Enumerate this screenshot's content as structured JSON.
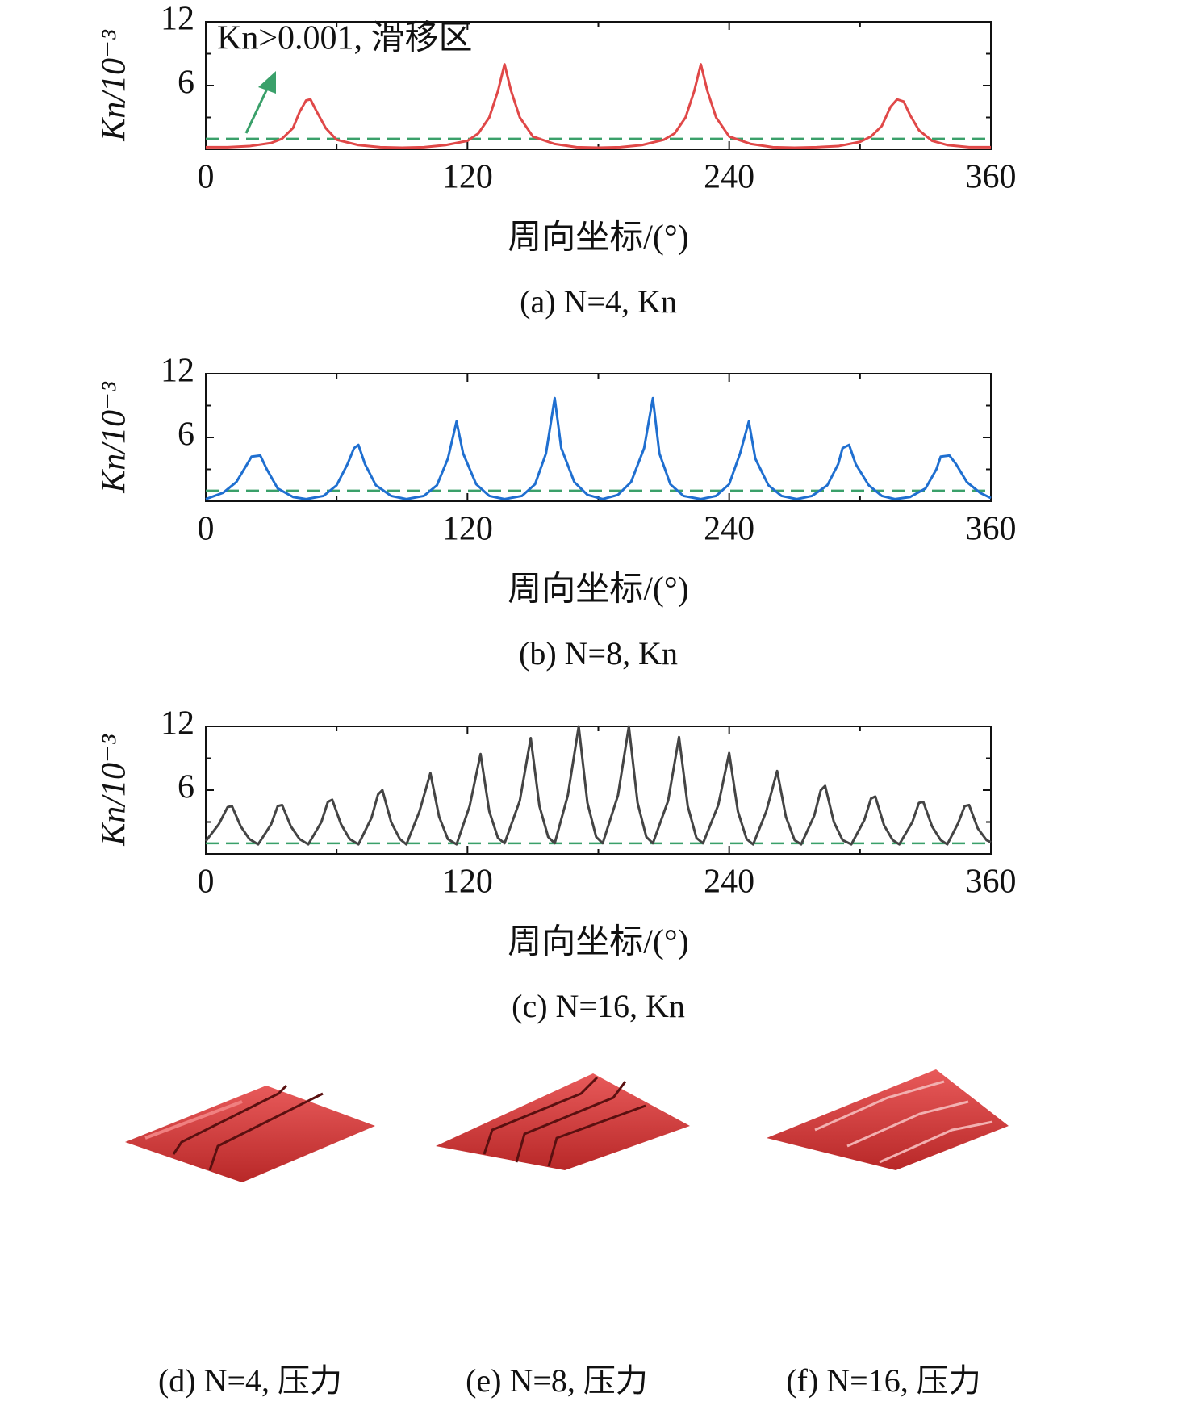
{
  "chart_data": [
    {
      "type": "line",
      "caption": "(a) N=4, Kn",
      "xlabel": "周向坐标/(°)",
      "ylabel": "Kn/10⁻³",
      "annotation": "Kn>0.001, 滑移区",
      "xlim": [
        0,
        360
      ],
      "xticks": [
        0,
        120,
        240,
        360
      ],
      "xminor": [
        60,
        180,
        300
      ],
      "ylim": [
        0,
        12
      ],
      "yticks": [
        6,
        12
      ],
      "yminor": [
        3,
        9
      ],
      "reference_y": 1,
      "reference_color": "#3aa06a",
      "color": "#e04848",
      "x": [
        0,
        10,
        20,
        30,
        35,
        40,
        43,
        46,
        48,
        51,
        55,
        60,
        70,
        80,
        90,
        100,
        110,
        120,
        125,
        130,
        134,
        137,
        140,
        144,
        150,
        160,
        170,
        180,
        190,
        200,
        210,
        215,
        220,
        224,
        227,
        230,
        234,
        240,
        250,
        260,
        270,
        280,
        290,
        300,
        305,
        310,
        314,
        317,
        320,
        323,
        327,
        333,
        340,
        350,
        360
      ],
      "values": [
        0.2,
        0.2,
        0.3,
        0.6,
        1.0,
        2.0,
        3.5,
        4.6,
        4.7,
        3.5,
        2.0,
        0.9,
        0.4,
        0.2,
        0.15,
        0.2,
        0.4,
        0.8,
        1.5,
        3.0,
        5.5,
        8.0,
        5.5,
        3.0,
        1.2,
        0.5,
        0.2,
        0.15,
        0.2,
        0.4,
        0.9,
        1.5,
        3.0,
        5.5,
        8.0,
        5.5,
        3.0,
        1.2,
        0.5,
        0.2,
        0.15,
        0.2,
        0.3,
        0.7,
        1.2,
        2.2,
        4.0,
        4.7,
        4.5,
        3.2,
        1.8,
        0.8,
        0.4,
        0.2,
        0.2
      ]
    },
    {
      "type": "line",
      "caption": "(b) N=8, Kn",
      "xlabel": "周向坐标/(°)",
      "ylabel": "Kn/10⁻³",
      "xlim": [
        0,
        360
      ],
      "xticks": [
        0,
        120,
        240,
        360
      ],
      "xminor": [
        60,
        180,
        300
      ],
      "ylim": [
        0,
        12
      ],
      "yticks": [
        6,
        12
      ],
      "yminor": [
        3,
        9
      ],
      "reference_y": 1,
      "reference_color": "#3aa06a",
      "color": "#1f6fd0",
      "x": [
        0,
        8,
        14,
        19,
        21,
        25,
        28,
        33,
        40,
        46,
        54,
        60,
        65,
        68,
        70,
        73,
        78,
        85,
        92,
        100,
        106,
        111,
        115,
        118,
        124,
        130,
        137,
        145,
        151,
        156,
        160,
        163,
        169,
        175,
        182,
        189,
        195,
        201,
        205,
        208,
        213,
        219,
        227,
        234,
        240,
        245,
        249,
        252,
        258,
        264,
        271,
        278,
        285,
        290,
        292,
        295,
        298,
        304,
        310,
        316,
        323,
        330,
        335,
        337,
        341,
        344,
        349,
        355,
        360
      ],
      "values": [
        0.2,
        0.8,
        1.8,
        3.5,
        4.2,
        4.3,
        3.0,
        1.2,
        0.4,
        0.2,
        0.5,
        1.5,
        3.5,
        5.0,
        5.3,
        3.5,
        1.5,
        0.5,
        0.2,
        0.5,
        1.5,
        4.0,
        7.5,
        4.5,
        1.6,
        0.5,
        0.2,
        0.5,
        1.6,
        4.5,
        9.7,
        5.0,
        1.8,
        0.6,
        0.2,
        0.6,
        1.8,
        5.0,
        9.7,
        4.5,
        1.6,
        0.5,
        0.2,
        0.5,
        1.6,
        4.5,
        7.5,
        4.0,
        1.5,
        0.5,
        0.2,
        0.5,
        1.5,
        3.5,
        5.0,
        5.3,
        3.5,
        1.5,
        0.5,
        0.2,
        0.4,
        1.2,
        3.0,
        4.2,
        4.3,
        3.5,
        1.8,
        0.8,
        0.3
      ]
    },
    {
      "type": "line",
      "caption": "(c) N=16, Kn",
      "xlabel": "周向坐标/(°)",
      "ylabel": "Kn/10⁻³",
      "xlim": [
        0,
        360
      ],
      "xticks": [
        0,
        120,
        240,
        360
      ],
      "xminor": [
        60,
        180,
        300
      ],
      "ylim": [
        0,
        12
      ],
      "yticks": [
        6,
        12
      ],
      "yminor": [
        3,
        9
      ],
      "reference_y": 1,
      "reference_color": "#3aa06a",
      "color": "#444444",
      "x": [
        0,
        6,
        10,
        12,
        16,
        20,
        24,
        30,
        33,
        35,
        39,
        43,
        47,
        53,
        56,
        58,
        62,
        66,
        70,
        76,
        79,
        81,
        85,
        89,
        92,
        98,
        103,
        107,
        111,
        115,
        121,
        126,
        130,
        134,
        137,
        144,
        149,
        153,
        157,
        160,
        166,
        171,
        175,
        179,
        182,
        189,
        194,
        198,
        202,
        205,
        212,
        217,
        221,
        225,
        228,
        235,
        240,
        244,
        248,
        251,
        257,
        262,
        266,
        270,
        273,
        279,
        282,
        284,
        288,
        292,
        296,
        302,
        305,
        307,
        311,
        315,
        318,
        324,
        327,
        329,
        333,
        337,
        340,
        345,
        348,
        350,
        354,
        358,
        360
      ],
      "values": [
        1.2,
        2.8,
        4.4,
        4.5,
        2.6,
        1.4,
        0.9,
        2.8,
        4.5,
        4.6,
        2.6,
        1.4,
        0.9,
        3.0,
        4.9,
        5.1,
        2.8,
        1.4,
        0.9,
        3.4,
        5.6,
        6.0,
        3.0,
        1.4,
        0.9,
        4.0,
        7.6,
        3.5,
        1.4,
        0.9,
        4.5,
        9.4,
        4.0,
        1.5,
        1.0,
        5.0,
        10.9,
        4.5,
        1.6,
        1.0,
        5.5,
        12.0,
        4.8,
        1.6,
        1.0,
        5.5,
        12.0,
        4.8,
        1.6,
        1.0,
        5.0,
        11.0,
        4.5,
        1.5,
        1.0,
        4.6,
        9.5,
        4.0,
        1.4,
        0.9,
        4.0,
        7.8,
        3.5,
        1.3,
        0.9,
        3.6,
        6.0,
        6.4,
        3.0,
        1.3,
        0.9,
        3.2,
        5.2,
        5.4,
        2.7,
        1.3,
        0.9,
        3.0,
        4.8,
        4.9,
        2.6,
        1.3,
        0.9,
        2.9,
        4.5,
        4.6,
        2.4,
        1.3,
        1.1
      ]
    }
  ],
  "images": [
    {
      "caption": "(d) N=4, 压力"
    },
    {
      "caption": "(e) N=8, 压力"
    },
    {
      "caption": "(f) N=16, 压力"
    }
  ]
}
